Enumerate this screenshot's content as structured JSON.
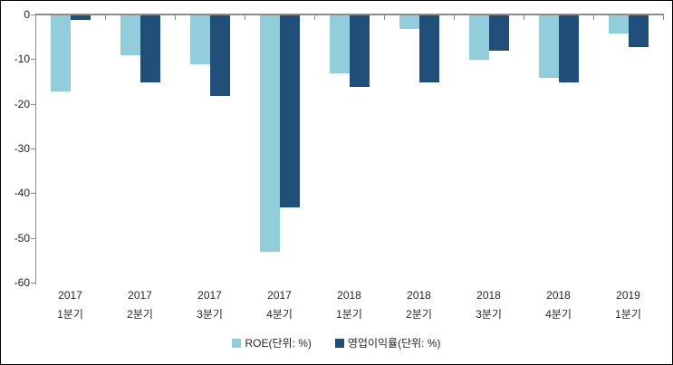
{
  "chart_data": {
    "type": "bar",
    "orientation": "vertical",
    "title": "",
    "xlabel": "",
    "ylabel": "",
    "categories": [
      {
        "year": "2017",
        "quarter": "1분기"
      },
      {
        "year": "2017",
        "quarter": "2분기"
      },
      {
        "year": "2017",
        "quarter": "3분기"
      },
      {
        "year": "2017",
        "quarter": "4분기"
      },
      {
        "year": "2018",
        "quarter": "1분기"
      },
      {
        "year": "2018",
        "quarter": "2분기"
      },
      {
        "year": "2018",
        "quarter": "3분기"
      },
      {
        "year": "2018",
        "quarter": "4분기"
      },
      {
        "year": "2019",
        "quarter": "1분기"
      }
    ],
    "series": [
      {
        "name": "ROE(단위: %)",
        "color": "#92CDDC",
        "values": [
          -17,
          -9,
          -11,
          -53,
          -13,
          -3,
          -10,
          -14,
          -4
        ]
      },
      {
        "name": "영업이익률(단위: %)",
        "color": "#1F4E79",
        "values": [
          -1,
          -15,
          -18,
          -43,
          -16,
          -15,
          -8,
          -15,
          -7
        ]
      }
    ],
    "ylim": [
      -60,
      0
    ],
    "yticks": [
      0,
      -10,
      -20,
      -30,
      -40,
      -50,
      -60
    ],
    "grid": false,
    "legend_position": "bottom",
    "colors": {
      "axis": "#8C8C8C",
      "text": "#262626",
      "background": "#FFFFFF",
      "frame_border": "#000000"
    }
  }
}
